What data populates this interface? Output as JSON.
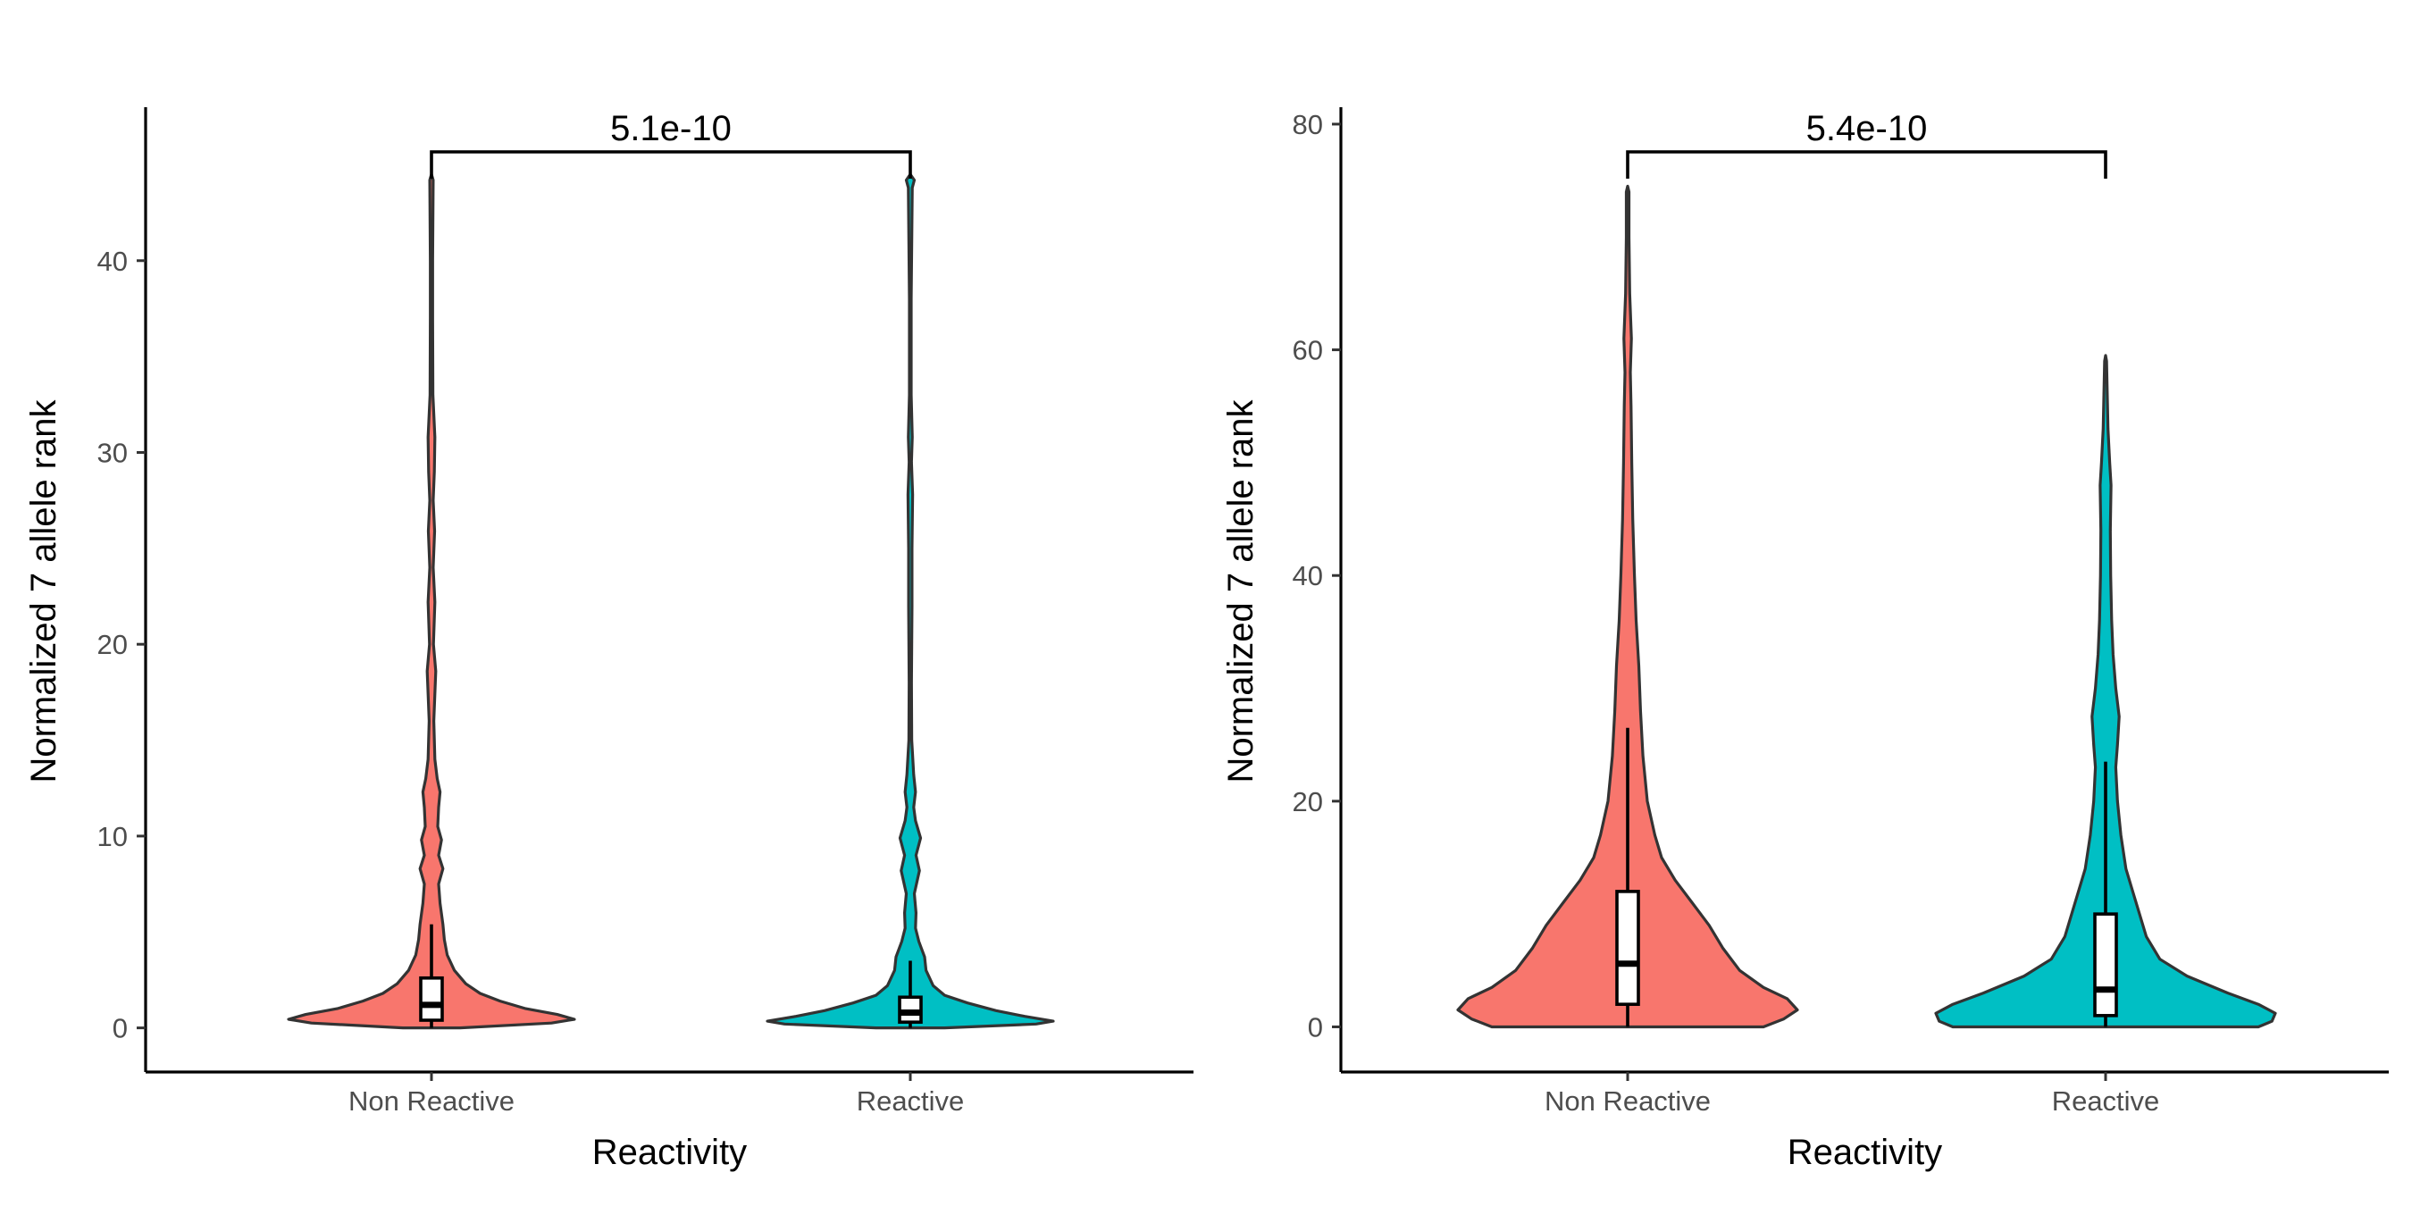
{
  "chart_data": [
    {
      "type": "violin",
      "xlabel": "Reactivity",
      "ylabel": "Normalized 7 allele rank",
      "categories": [
        "Non Reactive",
        "Reactive"
      ],
      "ylim": [
        -2.3,
        48
      ],
      "yticks": [
        0,
        10,
        20,
        30,
        40
      ],
      "grid": false,
      "legend": "none",
      "colors": [
        "#F8766D",
        "#00BFC4"
      ],
      "significance": {
        "groups": [
          "Non Reactive",
          "Reactive"
        ],
        "label": "5.1e-10",
        "y": 46.8
      },
      "series": [
        {
          "name": "Non Reactive",
          "max": 44.5,
          "box": {
            "q1": 0.4,
            "median": 1.2,
            "q3": 2.6,
            "whisker_low": 0,
            "whisker_high": 5.4
          },
          "density": [
            [
              0,
              0.1
            ],
            [
              0.25,
              0.42
            ],
            [
              0.45,
              0.5
            ],
            [
              0.7,
              0.44
            ],
            [
              1.0,
              0.33
            ],
            [
              1.4,
              0.24
            ],
            [
              1.8,
              0.17
            ],
            [
              2.3,
              0.12
            ],
            [
              3.0,
              0.08
            ],
            [
              3.8,
              0.055
            ],
            [
              4.6,
              0.045
            ],
            [
              5.4,
              0.04
            ],
            [
              6.5,
              0.03
            ],
            [
              7.5,
              0.025
            ],
            [
              8.3,
              0.04
            ],
            [
              9.0,
              0.025
            ],
            [
              9.8,
              0.035
            ],
            [
              10.5,
              0.022
            ],
            [
              11.5,
              0.025
            ],
            [
              12.3,
              0.03
            ],
            [
              13.0,
              0.02
            ],
            [
              14,
              0.012
            ],
            [
              16,
              0.008
            ],
            [
              18.6,
              0.015
            ],
            [
              20,
              0.007
            ],
            [
              22.2,
              0.012
            ],
            [
              24,
              0.006
            ],
            [
              25.9,
              0.011
            ],
            [
              27.5,
              0.006
            ],
            [
              29,
              0.01
            ],
            [
              30.8,
              0.012
            ],
            [
              33,
              0.005
            ],
            [
              37,
              0.004
            ],
            [
              40,
              0.004
            ],
            [
              44.2,
              0.006
            ],
            [
              44.5,
              0
            ]
          ]
        },
        {
          "name": "Reactive",
          "max": 44.5,
          "box": {
            "q1": 0.3,
            "median": 0.8,
            "q3": 1.6,
            "whisker_low": 0,
            "whisker_high": 3.5
          },
          "density": [
            [
              0,
              0.12
            ],
            [
              0.2,
              0.44
            ],
            [
              0.35,
              0.5
            ],
            [
              0.6,
              0.4
            ],
            [
              0.9,
              0.3
            ],
            [
              1.3,
              0.2
            ],
            [
              1.7,
              0.12
            ],
            [
              2.2,
              0.08
            ],
            [
              3.0,
              0.055
            ],
            [
              3.7,
              0.05
            ],
            [
              4.5,
              0.03
            ],
            [
              5.2,
              0.018
            ],
            [
              6.0,
              0.02
            ],
            [
              7.0,
              0.014
            ],
            [
              8.2,
              0.032
            ],
            [
              9.0,
              0.02
            ],
            [
              9.9,
              0.036
            ],
            [
              10.8,
              0.018
            ],
            [
              11.5,
              0.012
            ],
            [
              12.3,
              0.018
            ],
            [
              13.2,
              0.012
            ],
            [
              15,
              0.005
            ],
            [
              18,
              0.004
            ],
            [
              22,
              0.006
            ],
            [
              25,
              0.006
            ],
            [
              27.8,
              0.008
            ],
            [
              29.5,
              0.004
            ],
            [
              30.8,
              0.007
            ],
            [
              33,
              0.003
            ],
            [
              38,
              0.003
            ],
            [
              43.8,
              0.007
            ],
            [
              44.2,
              0.014
            ],
            [
              44.5,
              0
            ]
          ]
        }
      ]
    },
    {
      "type": "violin",
      "xlabel": "Reactivity",
      "ylabel": "Normalized 7 allele rank",
      "categories": [
        "Non Reactive",
        "Reactive"
      ],
      "ylim": [
        -4,
        81.5
      ],
      "yticks": [
        0,
        20,
        40,
        60,
        80
      ],
      "grid": false,
      "legend": "none",
      "colors": [
        "#F8766D",
        "#00BFC4"
      ],
      "significance": {
        "groups": [
          "Non Reactive",
          "Reactive"
        ],
        "label": "5.4e-10",
        "y": 78.5
      },
      "series": [
        {
          "name": "Non Reactive",
          "max": 74.5,
          "box": {
            "q1": 2,
            "median": 5.6,
            "q3": 12,
            "whisker_low": 0,
            "whisker_high": 26.5
          },
          "density": [
            [
              0,
              0.4
            ],
            [
              0.7,
              0.46
            ],
            [
              1.5,
              0.5
            ],
            [
              2.5,
              0.47
            ],
            [
              3.5,
              0.4
            ],
            [
              5,
              0.33
            ],
            [
              7,
              0.28
            ],
            [
              9,
              0.24
            ],
            [
              11,
              0.19
            ],
            [
              13,
              0.14
            ],
            [
              15,
              0.1
            ],
            [
              17,
              0.08
            ],
            [
              20,
              0.058
            ],
            [
              24,
              0.045
            ],
            [
              28,
              0.038
            ],
            [
              32,
              0.033
            ],
            [
              36,
              0.025
            ],
            [
              40,
              0.02
            ],
            [
              45,
              0.015
            ],
            [
              50,
              0.012
            ],
            [
              55,
              0.01
            ],
            [
              58,
              0.008
            ],
            [
              61,
              0.011
            ],
            [
              65,
              0.006
            ],
            [
              70,
              0.004
            ],
            [
              74,
              0.004
            ],
            [
              74.5,
              0
            ]
          ]
        },
        {
          "name": "Reactive",
          "max": 59.5,
          "box": {
            "q1": 1,
            "median": 3.3,
            "q3": 10,
            "whisker_low": 0,
            "whisker_high": 23.5
          },
          "density": [
            [
              0,
              0.45
            ],
            [
              0.5,
              0.49
            ],
            [
              1.2,
              0.5
            ],
            [
              2,
              0.45
            ],
            [
              3,
              0.36
            ],
            [
              4.5,
              0.24
            ],
            [
              6,
              0.16
            ],
            [
              8,
              0.12
            ],
            [
              10,
              0.1
            ],
            [
              12,
              0.08
            ],
            [
              14,
              0.06
            ],
            [
              17,
              0.045
            ],
            [
              20,
              0.035
            ],
            [
              23,
              0.03
            ],
            [
              25,
              0.035
            ],
            [
              27.5,
              0.04
            ],
            [
              30,
              0.03
            ],
            [
              33,
              0.022
            ],
            [
              36,
              0.018
            ],
            [
              40,
              0.015
            ],
            [
              44,
              0.014
            ],
            [
              48,
              0.016
            ],
            [
              50,
              0.012
            ],
            [
              53,
              0.007
            ],
            [
              56,
              0.005
            ],
            [
              59,
              0.003
            ],
            [
              59.5,
              0
            ]
          ]
        }
      ]
    }
  ]
}
